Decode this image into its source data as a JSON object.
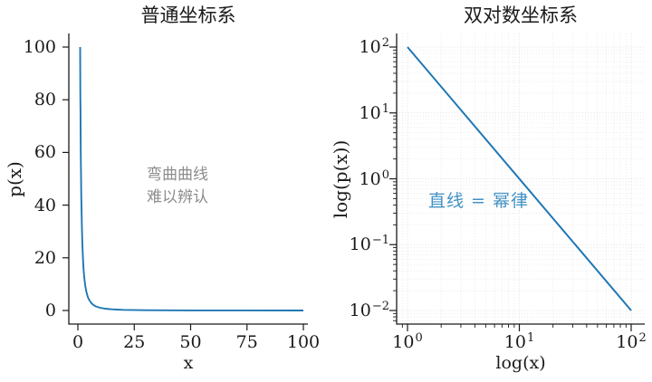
{
  "colors": {
    "line": "#1f77b4",
    "spine": "#1a1a1a",
    "text": "#1a1a1a",
    "grid_major": "#d8d8d8",
    "grid_minor": "#e6e6e6",
    "annotation_gray": "#8c8c8c",
    "annotation_blue": "#4291c4"
  },
  "chart_data": [
    {
      "type": "line",
      "title": "普通坐标系",
      "xlabel": "x",
      "ylabel": "p(x)",
      "x_scale": "linear",
      "y_scale": "linear",
      "xlim": [
        0,
        100
      ],
      "ylim": [
        0,
        100
      ],
      "x_ticks": [
        0,
        25,
        50,
        75,
        100
      ],
      "y_ticks": [
        0,
        20,
        40,
        60,
        80,
        100
      ],
      "grid": false,
      "legend": "none",
      "annotation": {
        "line1": "弯曲曲线",
        "line2": "难以辨认"
      },
      "series": [
        {
          "points": [
            [
              1,
              100
            ],
            [
              1.05,
              90.7
            ],
            [
              1.1,
              82.64
            ],
            [
              1.15,
              75.61
            ],
            [
              1.2,
              69.44
            ],
            [
              1.3,
              59.17
            ],
            [
              1.4,
              51.02
            ],
            [
              1.5,
              44.44
            ],
            [
              1.6,
              39.06
            ],
            [
              1.8,
              30.86
            ],
            [
              2,
              25
            ],
            [
              2.2,
              20.66
            ],
            [
              2.5,
              16
            ],
            [
              2.8,
              12.76
            ],
            [
              3.2,
              9.77
            ],
            [
              3.6,
              7.72
            ],
            [
              4,
              6.25
            ],
            [
              4.5,
              4.94
            ],
            [
              5,
              4
            ],
            [
              6,
              2.78
            ],
            [
              7,
              2.04
            ],
            [
              8,
              1.56
            ],
            [
              10,
              1
            ],
            [
              12,
              0.69
            ],
            [
              15,
              0.44
            ],
            [
              20,
              0.25
            ],
            [
              30,
              0.11
            ],
            [
              50,
              0.04
            ],
            [
              75,
              0.018
            ],
            [
              100,
              0.01
            ]
          ]
        }
      ]
    },
    {
      "type": "line",
      "title": "双对数坐标系",
      "xlabel": "log(x)",
      "ylabel": "log(p(x))",
      "x_scale": "log",
      "y_scale": "log",
      "xlim": [
        1,
        100
      ],
      "ylim": [
        0.01,
        100
      ],
      "x_ticks": [
        {
          "base": "10",
          "exp": "0",
          "value": 1
        },
        {
          "base": "10",
          "exp": "1",
          "value": 10
        },
        {
          "base": "10",
          "exp": "2",
          "value": 100
        }
      ],
      "y_ticks": [
        {
          "base": "10",
          "exp": "2",
          "value": 100
        },
        {
          "base": "10",
          "exp": "1",
          "value": 10
        },
        {
          "base": "10",
          "exp": "0",
          "value": 1
        },
        {
          "base": "10",
          "exp": "−1",
          "value": 0.1
        },
        {
          "base": "10",
          "exp": "−2",
          "value": 0.01
        }
      ],
      "x_minor_ticks": [
        0.9,
        2,
        3,
        4,
        5,
        6,
        7,
        8,
        9,
        20,
        30,
        40,
        50,
        60,
        70,
        80,
        90
      ],
      "y_minor_ticks": [
        0.007,
        0.008,
        0.009,
        0.02,
        0.03,
        0.04,
        0.05,
        0.06,
        0.07,
        0.08,
        0.09,
        0.2,
        0.3,
        0.4,
        0.5,
        0.6,
        0.7,
        0.8,
        0.9,
        2,
        3,
        4,
        5,
        6,
        7,
        8,
        9,
        20,
        30,
        40,
        50,
        60,
        70,
        80,
        90
      ],
      "grid": true,
      "legend": "none",
      "annotation": {
        "text": "直线 = 幂律"
      },
      "series": [
        {
          "points": [
            [
              1,
              100
            ],
            [
              100,
              0.01
            ]
          ]
        }
      ]
    }
  ]
}
